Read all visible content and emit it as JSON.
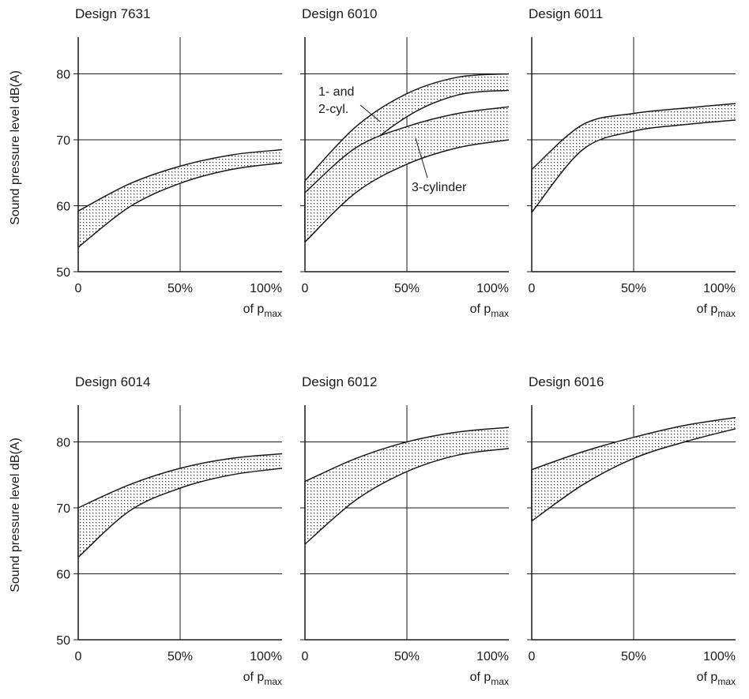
{
  "figure": {
    "ylabel": "Sound pressure level dB(A)",
    "xlabel_prefix": "of p",
    "xlabel_subscript": "max",
    "x_tick_labels": [
      "0",
      "50%",
      "100%"
    ],
    "y_tick_labels": [
      "50",
      "60",
      "70",
      "80"
    ]
  },
  "chart_data": [
    {
      "type": "area",
      "title": "Design 7631",
      "xlabel": "of pmax",
      "ylabel": "Sound pressure level dB(A)",
      "x": [
        0,
        25,
        50,
        75,
        100
      ],
      "ylim": [
        50,
        85
      ],
      "xlim": [
        0,
        100
      ],
      "grid": true,
      "series": [
        {
          "upper": [
            59.2,
            63.3,
            66.0,
            67.7,
            68.5
          ],
          "lower": [
            53.7,
            59.8,
            63.4,
            65.5,
            66.5
          ]
        }
      ]
    },
    {
      "type": "area",
      "title": "Design 6010",
      "xlabel": "of pmax",
      "ylabel": "Sound pressure level dB(A)",
      "x": [
        0,
        25,
        50,
        75,
        100
      ],
      "ylim": [
        50,
        85
      ],
      "xlim": [
        0,
        100
      ],
      "grid": true,
      "series": [
        {
          "name": "1- and 2-cyl.",
          "upper": [
            63.8,
            72.0,
            77.0,
            79.5,
            80.0
          ],
          "lower": [
            55.5,
            67.0,
            73.5,
            76.8,
            77.5
          ]
        },
        {
          "name": "3-cylinder",
          "upper": [
            62.0,
            68.8,
            72.0,
            74.0,
            75.0
          ],
          "lower": [
            54.5,
            62.0,
            66.3,
            68.8,
            70.0
          ]
        }
      ],
      "annotations": [
        "1- and",
        "2-cyl.",
        "3-cylinder"
      ]
    },
    {
      "type": "area",
      "title": "Design 6011",
      "xlabel": "of pmax",
      "ylabel": "Sound pressure level dB(A)",
      "x": [
        0,
        25,
        50,
        75,
        100
      ],
      "ylim": [
        50,
        85
      ],
      "xlim": [
        0,
        100
      ],
      "grid": true,
      "series": [
        {
          "upper": [
            65.5,
            72.3,
            74.0,
            74.8,
            75.5
          ],
          "lower": [
            59.0,
            68.5,
            71.3,
            72.3,
            73.0
          ]
        }
      ]
    },
    {
      "type": "area",
      "title": "Design 6014",
      "xlabel": "of pmax",
      "ylabel": "Sound pressure level dB(A)",
      "x": [
        0,
        25,
        50,
        75,
        100
      ],
      "ylim": [
        50,
        85
      ],
      "xlim": [
        0,
        100
      ],
      "grid": true,
      "series": [
        {
          "upper": [
            70.0,
            73.5,
            76.0,
            77.5,
            78.2
          ],
          "lower": [
            62.5,
            69.5,
            73.0,
            75.0,
            76.0
          ]
        }
      ]
    },
    {
      "type": "area",
      "title": "Design 6012",
      "xlabel": "of pmax",
      "ylabel": "Sound pressure level dB(A)",
      "x": [
        0,
        25,
        50,
        75,
        100
      ],
      "ylim": [
        50,
        85
      ],
      "xlim": [
        0,
        100
      ],
      "grid": true,
      "series": [
        {
          "upper": [
            74.0,
            77.5,
            80.0,
            81.5,
            82.2
          ],
          "lower": [
            64.5,
            71.2,
            75.5,
            78.0,
            79.0
          ]
        }
      ]
    },
    {
      "type": "area",
      "title": "Design 6016",
      "xlabel": "of pmax",
      "ylabel": "Sound pressure level dB(A)",
      "x": [
        0,
        25,
        50,
        75,
        100
      ],
      "ylim": [
        50,
        85
      ],
      "xlim": [
        0,
        100
      ],
      "grid": true,
      "series": [
        {
          "upper": [
            75.8,
            78.5,
            80.7,
            82.5,
            83.7
          ],
          "lower": [
            68.0,
            73.5,
            77.5,
            80.0,
            82.0
          ]
        }
      ]
    }
  ]
}
